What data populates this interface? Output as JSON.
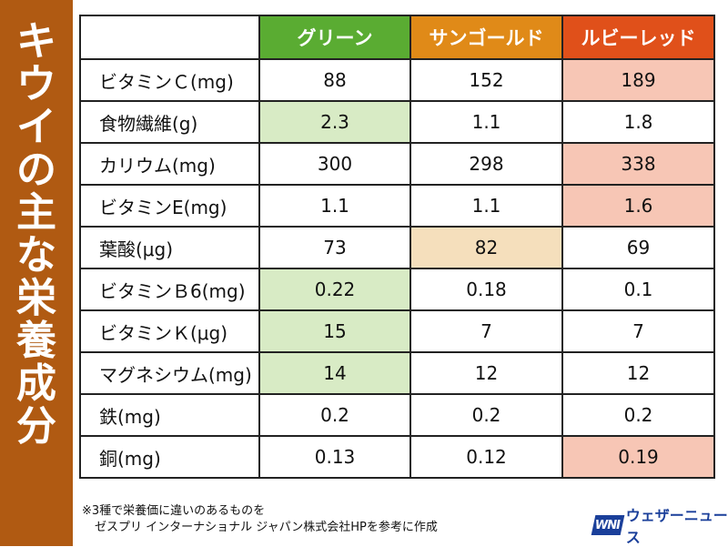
{
  "title": "キウイの主な栄養成分",
  "footnote": {
    "line1": "※3種で栄養価に違いのあるものを",
    "line2": "ゼスプリ インターナショナル ジャパン株式会社HPを参考に作成"
  },
  "brand": {
    "logo": "WNI",
    "name": "ウェザーニュース"
  },
  "colors": {
    "sidebar": "#b05a12",
    "green_header": "#5aac32",
    "sungold_header": "#e08a18",
    "ruby_header": "#e0501a",
    "green_highlight": "#d8ebc5",
    "sungold_highlight": "#f5dfbc",
    "ruby_highlight": "#f7c6b5"
  },
  "chart_data": {
    "type": "table",
    "columns": [
      "グリーン",
      "サンゴールド",
      "ルビーレッド"
    ],
    "rows": [
      {
        "label": "ビタミンＣ(mg)",
        "values": [
          "88",
          "152",
          "189"
        ],
        "highlight": [
          null,
          null,
          "ruby"
        ]
      },
      {
        "label": "食物繊維(g)",
        "values": [
          "2.3",
          "1.1",
          "1.8"
        ],
        "highlight": [
          "green",
          null,
          null
        ]
      },
      {
        "label": "カリウム(mg)",
        "values": [
          "300",
          "298",
          "338"
        ],
        "highlight": [
          null,
          null,
          "ruby"
        ]
      },
      {
        "label": "ビタミンE(mg)",
        "values": [
          "1.1",
          "1.1",
          "1.6"
        ],
        "highlight": [
          null,
          null,
          "ruby"
        ]
      },
      {
        "label": "葉酸(μg)",
        "values": [
          "73",
          "82",
          "69"
        ],
        "highlight": [
          null,
          "sungold",
          null
        ]
      },
      {
        "label": "ビタミンＢ6(mg)",
        "values": [
          "0.22",
          "0.18",
          "0.1"
        ],
        "highlight": [
          "green",
          null,
          null
        ]
      },
      {
        "label": "ビタミンＫ(μg)",
        "values": [
          "15",
          "7",
          "7"
        ],
        "highlight": [
          "green",
          null,
          null
        ]
      },
      {
        "label": "マグネシウム(mg)",
        "values": [
          "14",
          "12",
          "12"
        ],
        "highlight": [
          "green",
          null,
          null
        ]
      },
      {
        "label": "鉄(mg)",
        "values": [
          "0.2",
          "0.2",
          "0.2"
        ],
        "highlight": [
          null,
          null,
          null
        ]
      },
      {
        "label": "銅(mg)",
        "values": [
          "0.13",
          "0.12",
          "0.19"
        ],
        "highlight": [
          null,
          null,
          "ruby"
        ]
      }
    ]
  }
}
